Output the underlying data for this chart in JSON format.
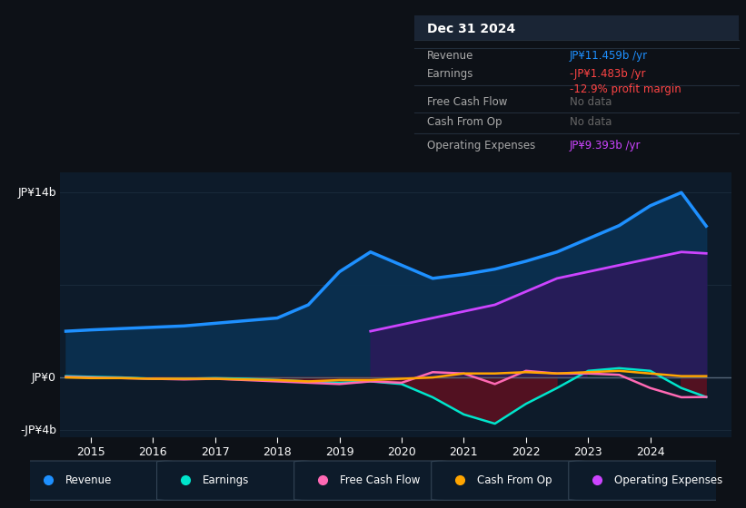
{
  "bg_color": "#0d1117",
  "plot_bg_color": "#0d1b2a",
  "title": "Dec 31 2024",
  "info_rows": [
    {
      "label": "Revenue",
      "value": "JP¥11.459b /yr",
      "value_color": "#1e90ff"
    },
    {
      "label": "Earnings",
      "value": "-JP¥1.483b /yr",
      "value_color": "#ff4444",
      "sub_value": "-12.9% profit margin",
      "sub_color": "#ff4444"
    },
    {
      "label": "Free Cash Flow",
      "value": "No data",
      "value_color": "#666666"
    },
    {
      "label": "Cash From Op",
      "value": "No data",
      "value_color": "#666666"
    },
    {
      "label": "Operating Expenses",
      "value": "JP¥9.393b /yr",
      "value_color": "#cc44ff"
    }
  ],
  "ylabel_top": "JP¥14b",
  "ylabel_zero": "JP¥0",
  "ylabel_bottom": "-JP¥4b",
  "ylim": [
    -4.5,
    15.5
  ],
  "xlim": [
    2014.5,
    2025.3
  ],
  "xticks": [
    2015,
    2016,
    2017,
    2018,
    2019,
    2020,
    2021,
    2022,
    2023,
    2024
  ],
  "years": [
    2014.6,
    2015.0,
    2015.5,
    2016.0,
    2016.5,
    2017.0,
    2017.5,
    2018.0,
    2018.5,
    2019.0,
    2019.5,
    2020.0,
    2020.5,
    2021.0,
    2021.5,
    2022.0,
    2022.5,
    2023.0,
    2023.5,
    2024.0,
    2024.5,
    2024.9
  ],
  "revenue": [
    3.5,
    3.6,
    3.7,
    3.8,
    3.9,
    4.1,
    4.3,
    4.5,
    5.5,
    8.0,
    9.5,
    8.5,
    7.5,
    7.8,
    8.2,
    8.8,
    9.5,
    10.5,
    11.5,
    13.0,
    14.0,
    11.459
  ],
  "earnings": [
    0.1,
    0.05,
    0.0,
    -0.1,
    -0.1,
    -0.05,
    -0.1,
    -0.2,
    -0.3,
    -0.4,
    -0.3,
    -0.5,
    -1.5,
    -2.8,
    -3.5,
    -2.0,
    -0.8,
    0.5,
    0.7,
    0.5,
    -0.8,
    -1.483
  ],
  "free_cash_flow": [
    0.05,
    0.0,
    -0.05,
    -0.1,
    -0.15,
    -0.1,
    -0.2,
    -0.3,
    -0.4,
    -0.5,
    -0.3,
    -0.4,
    0.4,
    0.3,
    -0.5,
    0.5,
    0.3,
    0.3,
    0.2,
    -0.8,
    -1.5,
    -1.48
  ],
  "cash_from_op": [
    0.0,
    -0.05,
    -0.05,
    -0.1,
    -0.1,
    -0.1,
    -0.15,
    -0.2,
    -0.3,
    -0.2,
    -0.2,
    -0.1,
    0.0,
    0.3,
    0.3,
    0.4,
    0.3,
    0.4,
    0.5,
    0.3,
    0.1,
    0.1
  ],
  "operating_expenses": [
    null,
    null,
    null,
    null,
    null,
    null,
    null,
    null,
    null,
    null,
    3.5,
    4.0,
    4.5,
    5.0,
    5.5,
    6.5,
    7.5,
    8.0,
    8.5,
    9.0,
    9.5,
    9.393
  ],
  "revenue_color": "#1e90ff",
  "earnings_color": "#00e5cc",
  "free_cash_flow_color": "#ff69b4",
  "cash_from_op_color": "#ffa500",
  "operating_expenses_color": "#cc44ff",
  "revenue_fill_color": "#0a3050",
  "earnings_fill_neg_color": "#5a1020",
  "operating_expenses_fill_color": "#2a1a5a",
  "grid_color": "#1a2a3a",
  "zero_line_color": "#556677",
  "legend_items": [
    {
      "label": "Revenue",
      "color": "#1e90ff"
    },
    {
      "label": "Earnings",
      "color": "#00e5cc"
    },
    {
      "label": "Free Cash Flow",
      "color": "#ff69b4"
    },
    {
      "label": "Cash From Op",
      "color": "#ffa500"
    },
    {
      "label": "Operating Expenses",
      "color": "#cc44ff"
    }
  ]
}
